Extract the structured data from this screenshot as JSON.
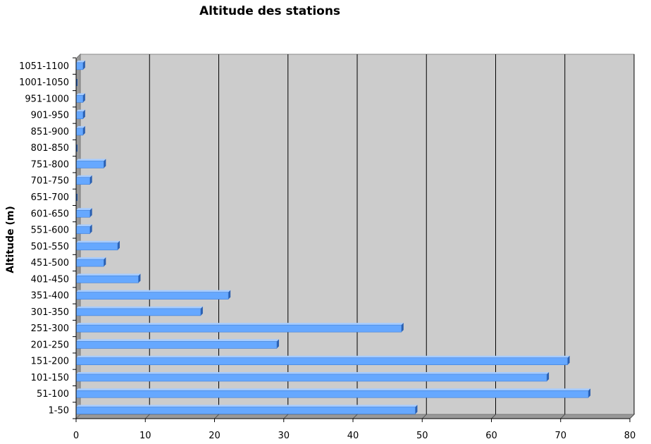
{
  "chart_data": {
    "type": "bar",
    "orientation": "horizontal",
    "title": "Altitude des stations",
    "xlabel": "",
    "ylabel": "Altitude (m)",
    "xlim": [
      0,
      80
    ],
    "x_ticks": [
      0,
      10,
      20,
      30,
      40,
      50,
      60,
      70,
      80
    ],
    "grid": "vertical",
    "categories": [
      "1-50",
      "51-100",
      "101-150",
      "151-200",
      "201-250",
      "251-300",
      "301-350",
      "351-400",
      "401-450",
      "451-500",
      "501-550",
      "551-600",
      "601-650",
      "651-700",
      "701-750",
      "751-800",
      "801-850",
      "851-900",
      "901-950",
      "951-1000",
      "1001-1050",
      "1051-1100"
    ],
    "values": [
      49,
      74,
      68,
      71,
      29,
      47,
      18,
      22,
      9,
      4,
      6,
      2,
      2,
      0,
      2,
      4,
      0,
      1,
      1,
      1,
      0,
      1
    ],
    "colors": {
      "bar": "#66a8ff",
      "bar_top": "#a6ccff",
      "bar_side": "#2a5fb0",
      "plot_back": "#cccccc",
      "plot_floor": "#999999"
    }
  }
}
